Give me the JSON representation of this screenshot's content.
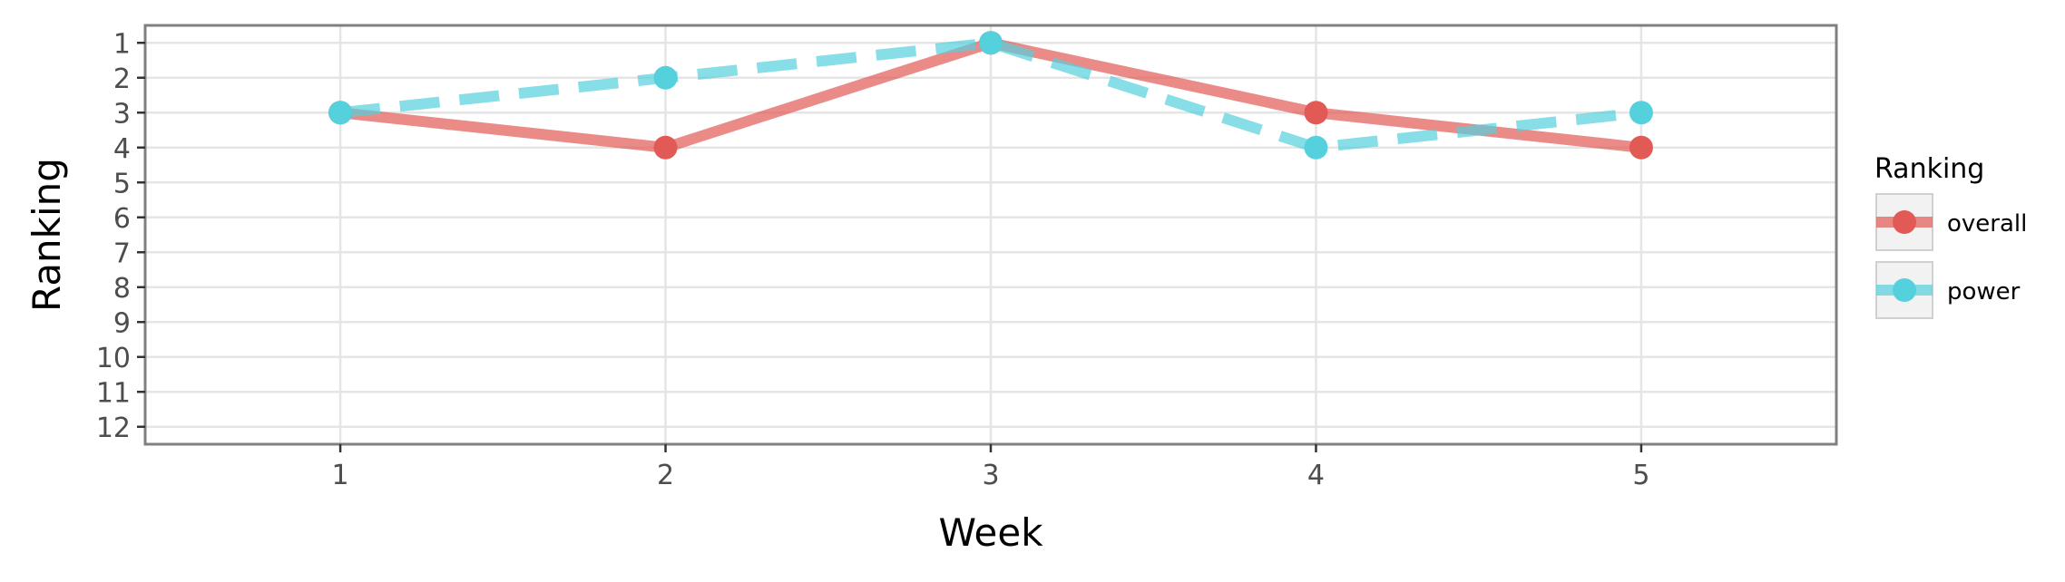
{
  "chart_data": {
    "type": "line",
    "title": "",
    "xlabel": "Week",
    "ylabel": "Ranking",
    "x": [
      1,
      2,
      3,
      4,
      5
    ],
    "x_ticks": [
      "1",
      "2",
      "3",
      "4",
      "5"
    ],
    "y_ticks": [
      "1",
      "2",
      "3",
      "4",
      "5",
      "6",
      "7",
      "8",
      "9",
      "10",
      "11",
      "12"
    ],
    "xlim": [
      0.4,
      5.6
    ],
    "ylim": [
      12.5,
      0.5
    ],
    "y_reversed": true,
    "grid": true,
    "legend": {
      "title": "Ranking",
      "placement": "right"
    },
    "series": [
      {
        "name": "overall",
        "values": [
          3,
          4,
          1,
          3,
          4
        ],
        "color": "#e15a55",
        "line_style": "solid"
      },
      {
        "name": "power",
        "values": [
          3,
          2,
          1,
          4,
          3
        ],
        "color": "#55d0dd",
        "line_style": "dashed"
      }
    ]
  }
}
